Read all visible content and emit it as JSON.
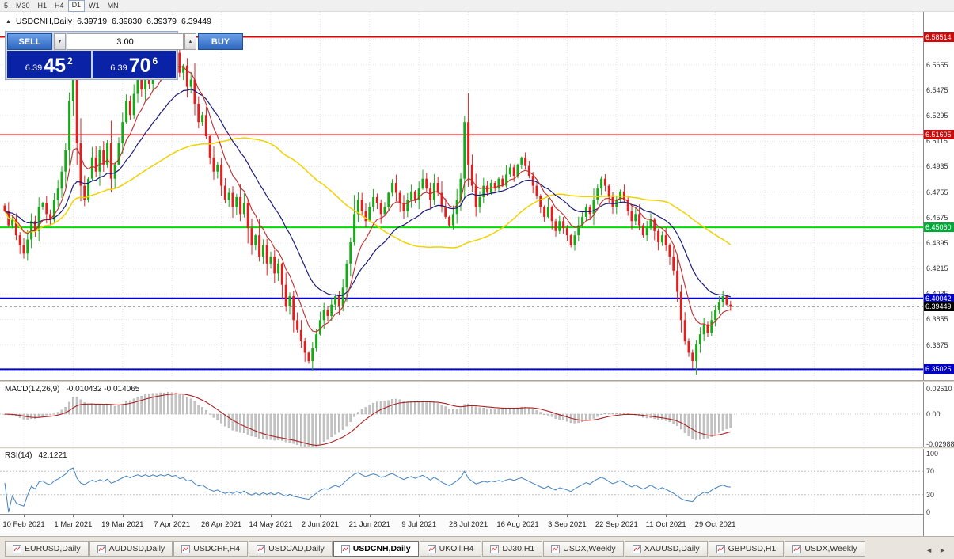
{
  "toolbar": {
    "timeframes": [
      {
        "label": "5",
        "active": false
      },
      {
        "label": "M30",
        "active": false
      },
      {
        "label": "H1",
        "active": false
      },
      {
        "label": "H4",
        "active": false
      },
      {
        "label": "D1",
        "active": true
      },
      {
        "label": "W1",
        "active": false
      },
      {
        "label": "MN",
        "active": false
      }
    ]
  },
  "chart": {
    "title_text": "USDCNH,Daily",
    "ohlc": {
      "open": "6.39719",
      "high": "6.39830",
      "low": "6.39379",
      "close": "6.39449"
    },
    "trade_panel": {
      "sell_label": "SELL",
      "buy_label": "BUY",
      "volume": "3.00",
      "sell_price": {
        "prefix": "6.39",
        "pips": "45",
        "fraction": "2"
      },
      "buy_price": {
        "prefix": "6.39",
        "pips": "70",
        "fraction": "6"
      }
    }
  },
  "chart_data": {
    "type": "candlestick",
    "symbol": "USDCNH",
    "timeframe": "Daily",
    "ylim": [
      6.346,
      6.599
    ],
    "y_ticks": [
      "6.5835",
      "6.5655",
      "6.5475",
      "6.5295",
      "6.5115",
      "6.4935",
      "6.4755",
      "6.4575",
      "6.4395",
      "6.4215",
      "6.4035",
      "6.3855",
      "6.3675",
      "6.3495"
    ],
    "x_labels": [
      "10 Feb 2021",
      "1 Mar 2021",
      "19 Mar 2021",
      "7 Apr 2021",
      "26 Apr 2021",
      "14 May 2021",
      "2 Jun 2021",
      "21 Jun 2021",
      "9 Jul 2021",
      "28 Jul 2021",
      "16 Aug 2021",
      "3 Sep 2021",
      "22 Sep 2021",
      "11 Oct 2021",
      "29 Oct 2021"
    ],
    "up_color": "#18a818",
    "down_color": "#dd2020",
    "closes": [
      6.462,
      6.452,
      6.456,
      6.445,
      6.438,
      6.432,
      6.442,
      6.455,
      6.448,
      6.465,
      6.468,
      6.46,
      6.456,
      6.47,
      6.478,
      6.49,
      6.505,
      6.54,
      6.555,
      6.51,
      6.48,
      6.47,
      6.485,
      6.5,
      6.49,
      6.505,
      6.495,
      6.51,
      6.485,
      6.495,
      6.51,
      6.525,
      6.54,
      6.53,
      6.545,
      6.555,
      6.548,
      6.56,
      6.552,
      6.565,
      6.558,
      6.57,
      6.565,
      6.576,
      6.568,
      6.574,
      6.56,
      6.565,
      6.55,
      6.555,
      6.538,
      6.525,
      6.53,
      6.515,
      6.5,
      6.49,
      6.495,
      6.48,
      6.47,
      6.475,
      6.465,
      6.472,
      6.46,
      6.468,
      6.45,
      6.438,
      6.445,
      6.43,
      6.438,
      6.425,
      6.43,
      6.418,
      6.425,
      6.41,
      6.395,
      6.402,
      6.385,
      6.378,
      6.37,
      6.362,
      6.356,
      6.365,
      6.375,
      6.385,
      6.392,
      6.388,
      6.396,
      6.402,
      6.395,
      6.408,
      6.425,
      6.44,
      6.46,
      6.47,
      6.462,
      6.455,
      6.465,
      6.472,
      6.468,
      6.46,
      6.465,
      6.475,
      6.482,
      6.475,
      6.468,
      6.462,
      6.47,
      6.476,
      6.47,
      6.478,
      6.485,
      6.478,
      6.47,
      6.482,
      6.475,
      6.465,
      6.458,
      6.452,
      6.46,
      6.47,
      6.485,
      6.525,
      6.495,
      6.48,
      6.465,
      6.472,
      6.48,
      6.475,
      6.482,
      6.478,
      6.485,
      6.48,
      6.488,
      6.493,
      6.487,
      6.495,
      6.5,
      6.494,
      6.487,
      6.48,
      6.473,
      6.465,
      6.458,
      6.465,
      6.455,
      6.448,
      6.455,
      6.45,
      6.445,
      6.438,
      6.445,
      6.452,
      6.458,
      6.465,
      6.46,
      6.47,
      6.478,
      6.485,
      6.48,
      6.472,
      6.465,
      6.47,
      6.476,
      6.47,
      6.462,
      6.455,
      6.46,
      6.452,
      6.445,
      6.45,
      6.456,
      6.448,
      6.44,
      6.445,
      6.438,
      6.43,
      6.42,
      6.405,
      6.385,
      6.37,
      6.362,
      6.356,
      6.368,
      6.375,
      6.382,
      6.376,
      6.385,
      6.392,
      6.398,
      6.402,
      6.396,
      6.3945
    ],
    "levels": [
      {
        "value": 6.58514,
        "label": "6.58514",
        "box_color": "#cc0a0a",
        "line_color": "#e00000",
        "width": 1.4
      },
      {
        "value": 6.51605,
        "label": "6.51605",
        "box_color": "#cc0a0a",
        "line_color": "#e00000",
        "width": 1.4
      },
      {
        "value": 6.4506,
        "label": "6.45060",
        "box_color": "#00a838",
        "line_color": "#00dd00",
        "width": 2
      },
      {
        "value": 6.40042,
        "label": "6.40042",
        "box_color": "#0000cc",
        "line_color": "#0000d8",
        "width": 2
      },
      {
        "value": 6.35025,
        "label": "6.35025",
        "box_color": "#0000cc",
        "line_color": "#0000d8",
        "width": 2
      }
    ],
    "current_price": {
      "value": 6.39449,
      "label": "6.39449",
      "box_color": "#000000"
    },
    "moving_averages": [
      {
        "name": "fast-ma",
        "period": 8,
        "type": "ema",
        "color": "#c22b2b",
        "width": 1.1
      },
      {
        "name": "mid-ma",
        "period": 21,
        "type": "ema",
        "color": "#1c1c7a",
        "width": 1.2
      },
      {
        "name": "slow-ma",
        "period": 55,
        "type": "sma",
        "color": "#f0d200",
        "width": 1.5
      }
    ],
    "indicators": {
      "macd": {
        "label": "MACD(12,26,9)",
        "values_text": "-0.010432 -0.014065",
        "fast": 12,
        "slow": 26,
        "signal": 9,
        "axis_labels": [
          "0.02510",
          "0.00",
          "-0.02988"
        ],
        "axis_values": [
          0.0251,
          0,
          -0.02988
        ],
        "histogram_color": "#c4c4c4",
        "signal_color": "#aa2222"
      },
      "rsi": {
        "label": "RSI(14)",
        "value_text": "42.1221",
        "period": 14,
        "axis_labels": [
          "100",
          "70",
          "30",
          "0"
        ],
        "axis_values": [
          100,
          70,
          30,
          0
        ],
        "levels": [
          70,
          30
        ],
        "line_color": "#4080c0"
      }
    }
  },
  "tabs": {
    "items": [
      {
        "label": "EURUSD,Daily",
        "active": false
      },
      {
        "label": "AUDUSD,Daily",
        "active": false
      },
      {
        "label": "USDCHF,H4",
        "active": false
      },
      {
        "label": "USDCAD,Daily",
        "active": false
      },
      {
        "label": "USDCNH,Daily",
        "active": true
      },
      {
        "label": "UKOil,H4",
        "active": false
      },
      {
        "label": "DJ30,H1",
        "active": false
      },
      {
        "label": "USDX,Weekly",
        "active": false
      },
      {
        "label": "XAUUSD,Daily",
        "active": false
      },
      {
        "label": "GBPUSD,H1",
        "active": false
      },
      {
        "label": "USDX,Weekly",
        "active": false
      }
    ],
    "scroll_left": "◄",
    "scroll_right": "►"
  }
}
